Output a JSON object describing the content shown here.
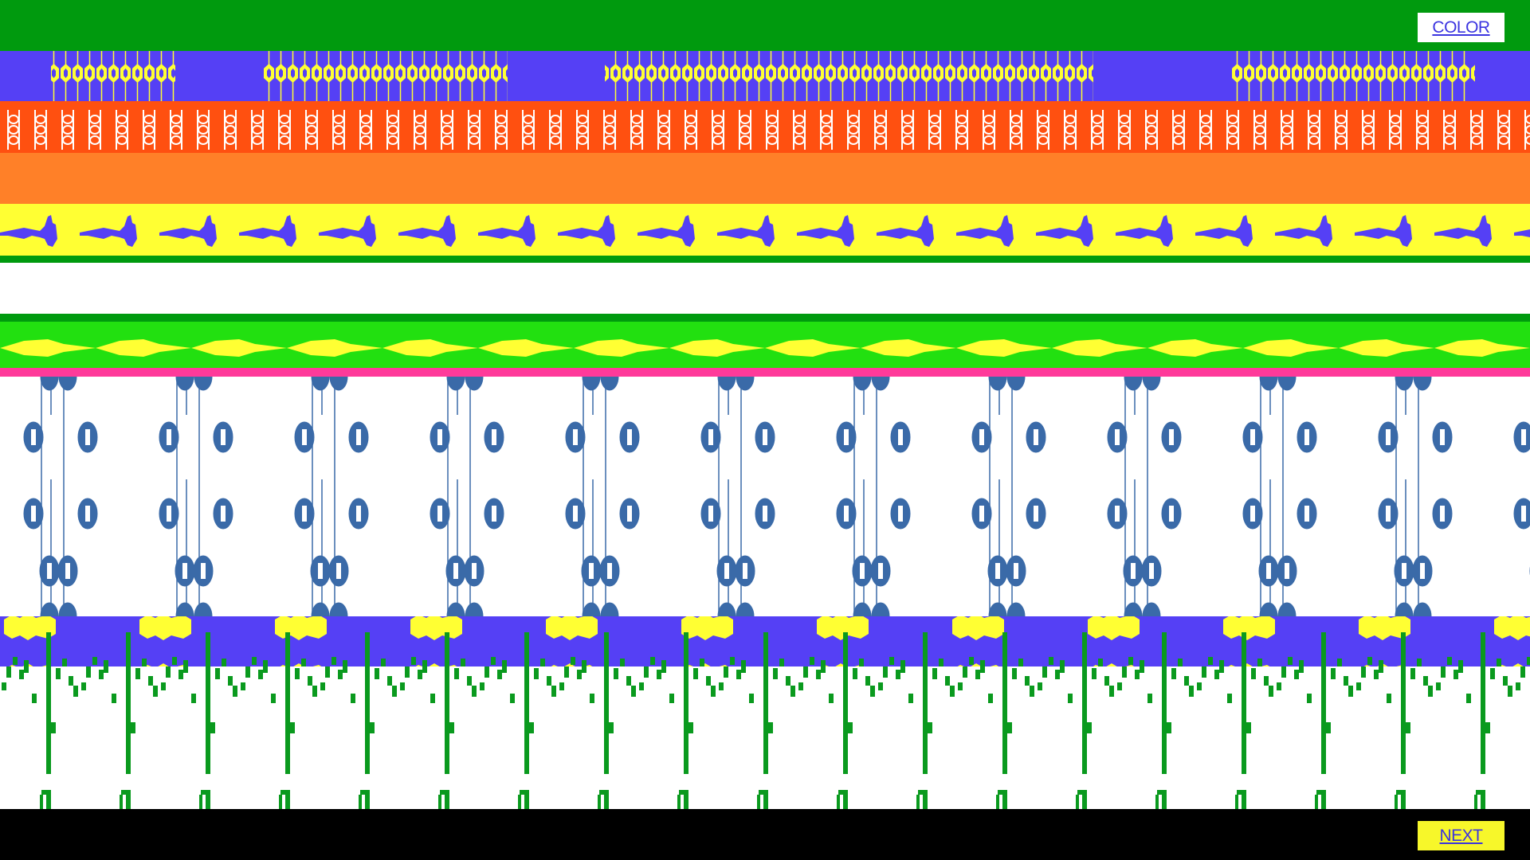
{
  "buttons": {
    "color": "COLOR",
    "next": "NEXT"
  }
}
